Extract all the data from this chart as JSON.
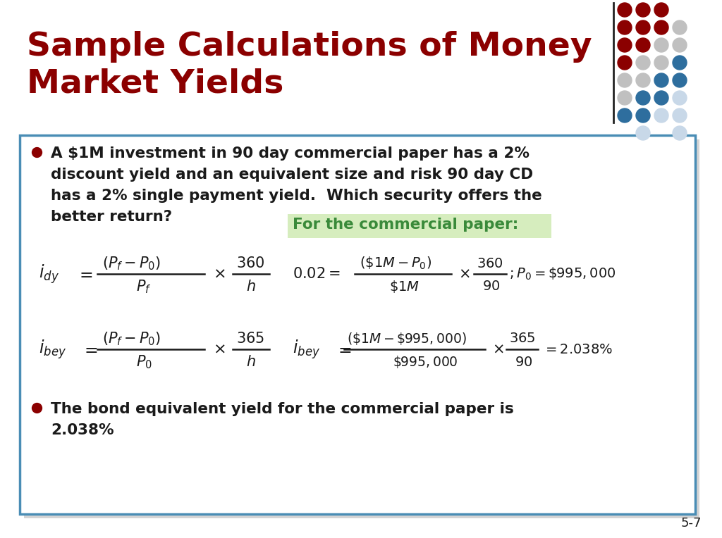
{
  "title_line1": "Sample Calculations of Money",
  "title_line2": "Market Yields",
  "title_color": "#8B0000",
  "title_fontsize": 28,
  "bg_color": "#FFFFFF",
  "box_border_color": "#4A8DB5",
  "box_bg_color": "#FFFFFF",
  "bullet_color": "#8B0000",
  "text_color": "#1A1A1A",
  "formula_color": "#1A1A1A",
  "highlight_color": "#D6EDBE",
  "green_text_color": "#3A8A3A",
  "slide_number": "5-7",
  "dot_grid": [
    [
      "#8B0000",
      "#8B0000",
      "#8B0000",
      "none"
    ],
    [
      "#8B0000",
      "#8B0000",
      "#8B0000",
      "#C0C0C0"
    ],
    [
      "#8B0000",
      "#8B0000",
      "#C0C0C0",
      "#C0C0C0"
    ],
    [
      "#8B0000",
      "#C0C0C0",
      "#C0C0C0",
      "#2E6E9E"
    ],
    [
      "#C0C0C0",
      "#C0C0C0",
      "#2E6E9E",
      "#2E6E9E"
    ],
    [
      "#C0C0C0",
      "#2E6E9E",
      "#2E6E9E",
      "#C8D8E8"
    ],
    [
      "#2E6E9E",
      "#2E6E9E",
      "#C8D8E8",
      "#C8D8E8"
    ],
    [
      "none",
      "#C8D8E8",
      "none",
      "#C8D8E8"
    ]
  ],
  "line_color": "#222222",
  "shadow_color": "#AAAAAA"
}
